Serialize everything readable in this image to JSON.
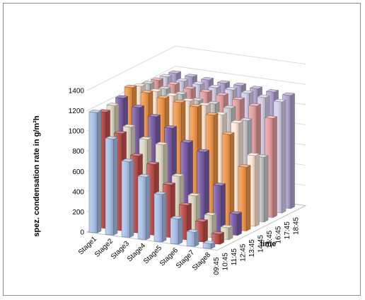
{
  "chart_data": {
    "type": "bar",
    "subtype": "3d-clustered",
    "title": "",
    "ylabel": "spez. condensation rate  in g/m²h",
    "xlabel": "time",
    "ylim": [
      0,
      1400
    ],
    "yticks": [
      "0",
      "200",
      "400",
      "600",
      "800",
      "1000",
      "1200",
      "1400"
    ],
    "grid": true,
    "legend": "none",
    "categories": [
      "Stage1",
      "Stage2",
      "Stage3",
      "Stage4",
      "Stage5",
      "Stage6",
      "Stage7",
      "Stage8"
    ],
    "series": [
      {
        "name": "09:45",
        "color": "#a9c1e8",
        "values": [
          1190,
          950,
          750,
          620,
          470,
          250,
          140,
          50
        ]
      },
      {
        "name": "10:45",
        "color": "#c0504d",
        "values": [
          1150,
          960,
          760,
          700,
          520,
          340,
          200,
          100
        ]
      },
      {
        "name": "11:45",
        "color": "#ddd9c3",
        "values": [
          1170,
          980,
          880,
          850,
          560,
          390,
          220,
          120
        ]
      },
      {
        "name": "12:45",
        "color": "#7b5ea8",
        "values": [
          1200,
          1130,
          1060,
          970,
          850,
          780,
          470,
          210
        ]
      },
      {
        "name": "13:45",
        "color": "#f0974a",
        "values": [
          1260,
          1230,
          1200,
          1180,
          1160,
          1100,
          930,
          630
        ]
      },
      {
        "name": "14:45",
        "color": "#fde9d9",
        "values": [
          1230,
          1200,
          1180,
          1150,
          1130,
          1060,
          1000,
          700
        ]
      },
      {
        "name": "15:45",
        "color": "#cccccc",
        "values": [
          1210,
          1180,
          1150,
          1110,
          1100,
          1080,
          980,
          640
        ]
      },
      {
        "name": "16:45",
        "color": "#e6a0a0",
        "values": [
          1200,
          1180,
          1160,
          1150,
          1140,
          1120,
          1080,
          980
        ]
      },
      {
        "name": "17:45",
        "color": "#d4d0e8",
        "values": [
          1190,
          1170,
          1160,
          1150,
          1150,
          1140,
          1120,
          1100
        ]
      },
      {
        "name": "18:45",
        "color": "#b6a6d4",
        "values": [
          1180,
          1170,
          1160,
          1150,
          1150,
          1140,
          1130,
          1120
        ]
      }
    ]
  }
}
